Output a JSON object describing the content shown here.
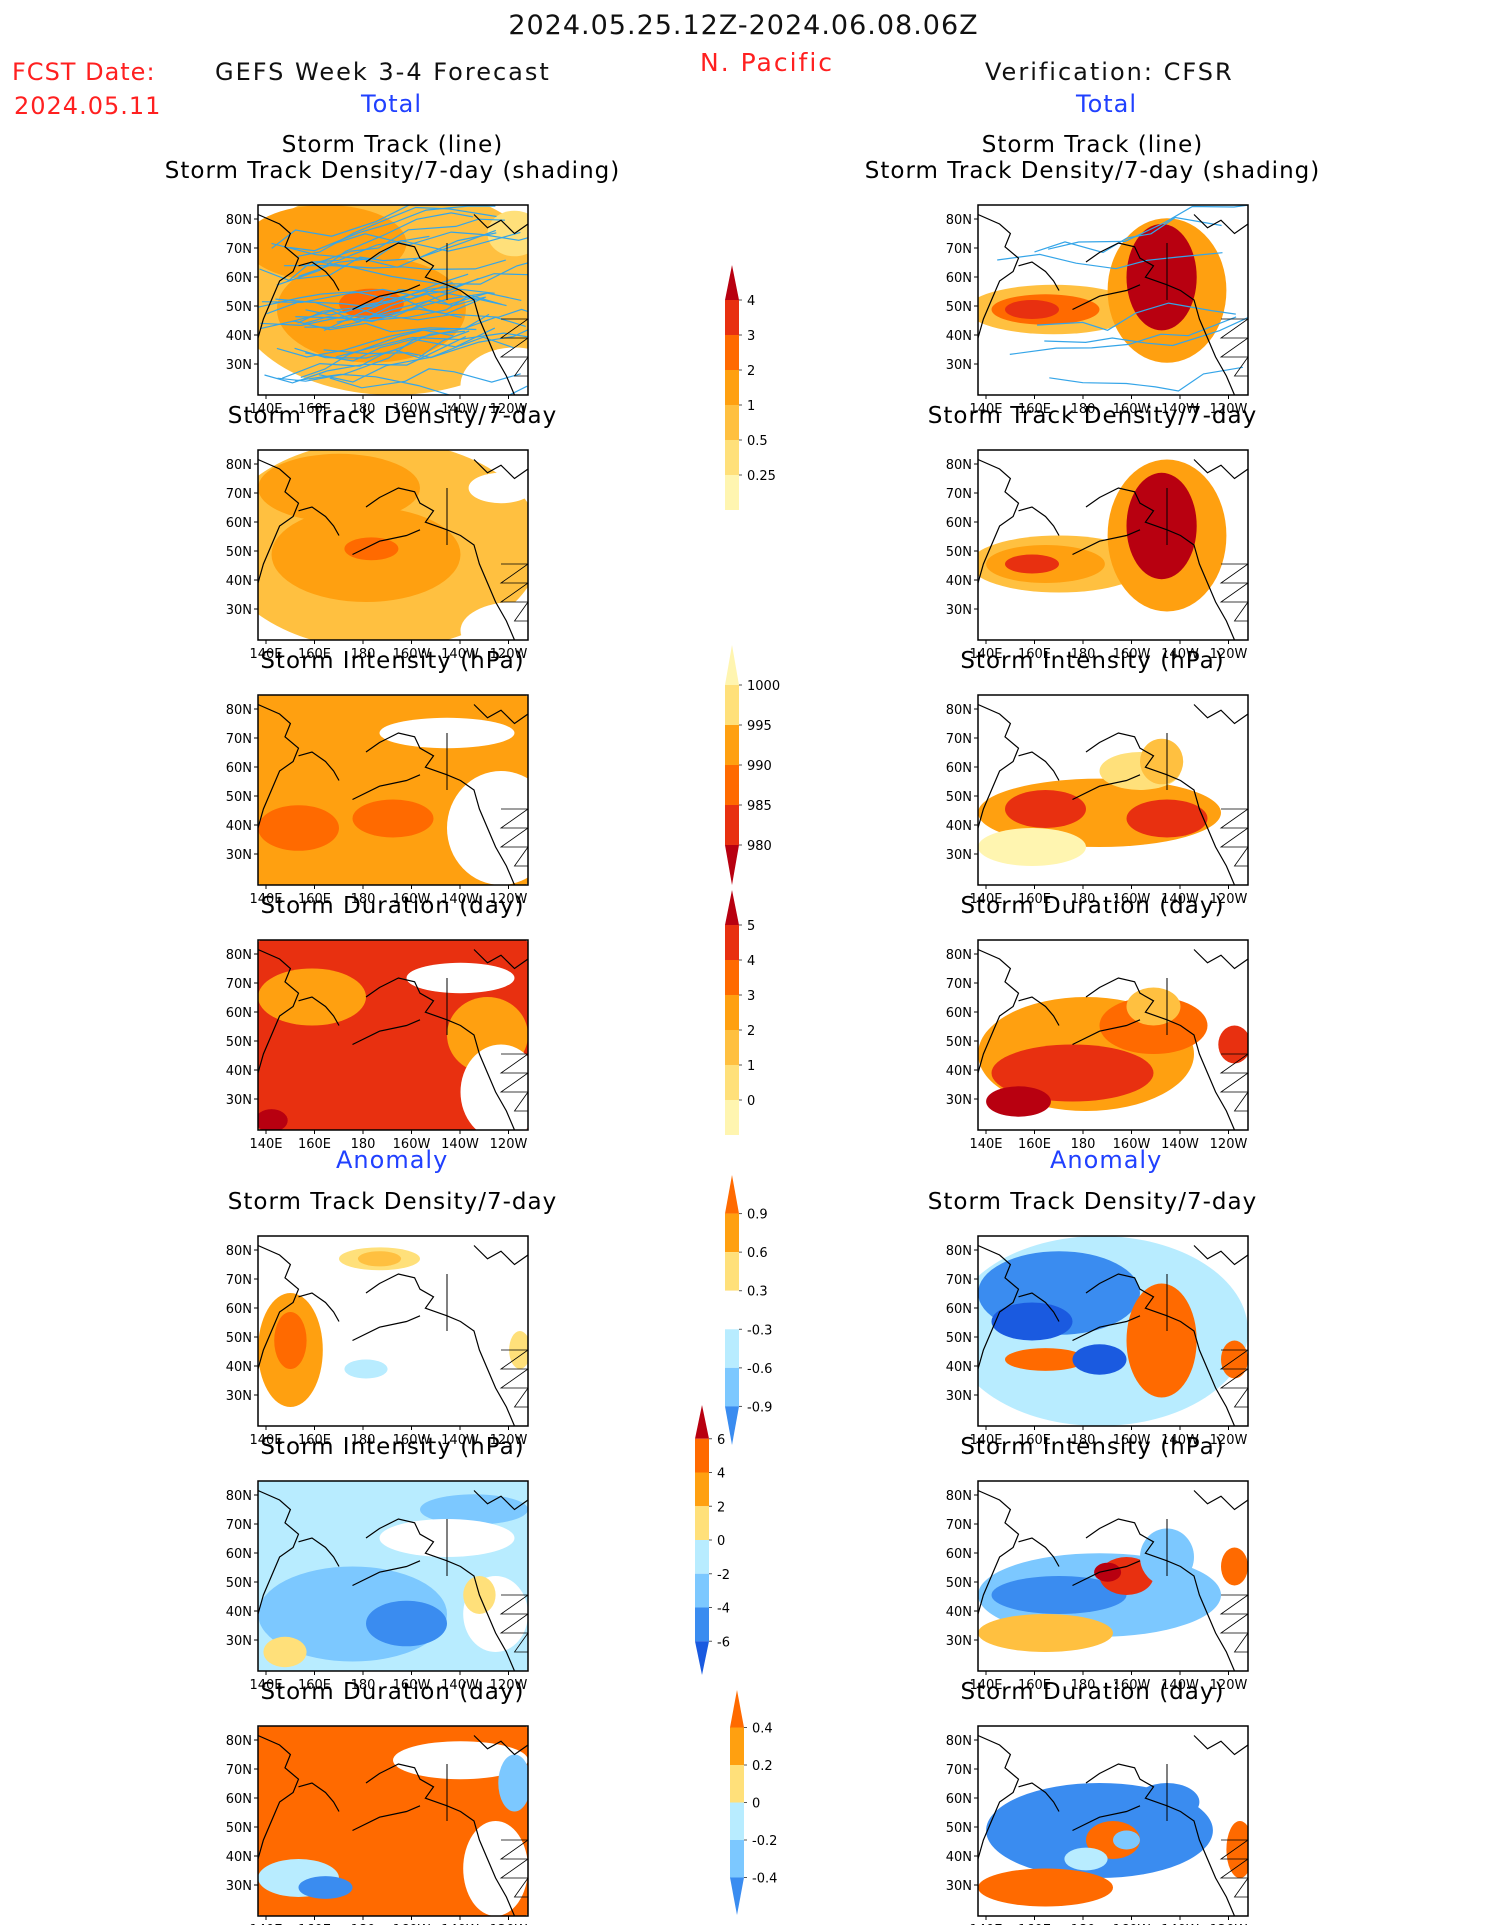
{
  "header": {
    "period": "2024.05.25.12Z-2024.06.08.06Z",
    "region": "N. Pacific",
    "fcst_label": "FCST Date:",
    "fcst_date": "2024.05.11",
    "forecast_title": "GEFS Week 3-4 Forecast",
    "verification_title": "Verification: CFSR",
    "total_label": "Total",
    "anomaly_label": "Anomaly"
  },
  "map_axes": {
    "lat_ticks": [
      "80N",
      "70N",
      "60N",
      "50N",
      "40N",
      "30N"
    ],
    "lon_ticks": [
      "140E",
      "160E",
      "180",
      "160W",
      "140W",
      "120W"
    ]
  },
  "colors": {
    "title_blue": "#2040ff",
    "title_red": "#ff2020",
    "yellow_pale": "#fff5b0",
    "yellow": "#ffe07a",
    "orange_light": "#ffc040",
    "orange": "#ffa010",
    "orange_dark": "#ff6a00",
    "red": "#e83010",
    "red_dark": "#b80010",
    "blue_pale": "#b8ecff",
    "blue_light": "#7cc8ff",
    "blue": "#3a8cf0",
    "blue_dark": "#1a5ae0",
    "track_line": "#35a5e8"
  },
  "panels": {
    "left": {
      "track": [
        "Storm Track (line)",
        "Storm Track Density/7-day (shading)"
      ],
      "density": "Storm Track Density/7-day",
      "intensity": "Storm Intensity (hPa)",
      "duration": "Storm Duration (day)",
      "anom_density": "Storm Track Density/7-day",
      "anom_intensity": "Storm Intensity (hPa)",
      "anom_duration": "Storm Duration (day)"
    },
    "right": {
      "track": [
        "Storm Track (line)",
        "Storm Track Density/7-day (shading)"
      ],
      "density": "Storm Track Density/7-day",
      "intensity": "Storm Intensity (hPa)",
      "duration": "Storm Duration (day)",
      "anom_density": "Storm Track Density/7-day",
      "anom_intensity": "Storm Intensity (hPa)",
      "anom_duration": "Storm Duration (day)"
    }
  },
  "colorbars": {
    "density": {
      "labels": [
        "4",
        "3",
        "2",
        "1",
        "0.5",
        "0.25"
      ],
      "colors": [
        "#b80010",
        "#e83010",
        "#ff6a00",
        "#ffa010",
        "#ffc040",
        "#ffe07a",
        "#fff5b0"
      ]
    },
    "intensity": {
      "labels": [
        "1000",
        "995",
        "990",
        "985",
        "980"
      ],
      "colors": [
        "#fff5b0",
        "#ffe07a",
        "#ffa010",
        "#ff6a00",
        "#e83010",
        "#b80010"
      ]
    },
    "duration": {
      "labels": [
        "5",
        "4",
        "3",
        "2",
        "1",
        "0"
      ],
      "colors": [
        "#b80010",
        "#e83010",
        "#ff6a00",
        "#ffa010",
        "#ffc040",
        "#ffe07a",
        "#fff5b0"
      ]
    },
    "anom_density": {
      "labels": [
        "0.9",
        "0.6",
        "0.3",
        "-0.3",
        "-0.6",
        "-0.9"
      ],
      "colors": [
        "#ff6a00",
        "#ffa010",
        "#ffe07a",
        "#ffffff",
        "#b8ecff",
        "#7cc8ff",
        "#3a8cf0"
      ]
    },
    "anom_intensity": {
      "labels": [
        "6",
        "4",
        "2",
        "0",
        "-2",
        "-4",
        "-6"
      ],
      "colors": [
        "#b80010",
        "#ff6a00",
        "#ffa010",
        "#ffe07a",
        "#b8ecff",
        "#7cc8ff",
        "#3a8cf0",
        "#1a5ae0"
      ]
    },
    "anom_duration": {
      "labels": [
        "0.4",
        "0.2",
        "0",
        "-0.2",
        "-0.4"
      ],
      "colors": [
        "#ff6a00",
        "#ffa010",
        "#ffe07a",
        "#b8ecff",
        "#7cc8ff",
        "#3a8cf0"
      ]
    }
  },
  "chart_data": [
    {
      "type": "heatmap",
      "title": "Storm Track (line) / Storm Track Density/7-day (shading)",
      "source": "GEFS Week 3-4 Forecast",
      "colorbar_levels": [
        0.25,
        0.5,
        1,
        2,
        3,
        4
      ],
      "overlay": "storm track lines"
    },
    {
      "type": "heatmap",
      "title": "Storm Track (line) / Storm Track Density/7-day (shading)",
      "source": "Verification: CFSR",
      "colorbar_levels": [
        0.25,
        0.5,
        1,
        2,
        3,
        4
      ],
      "overlay": "storm track lines"
    },
    {
      "type": "heatmap",
      "title": "Storm Track Density/7-day",
      "source": "GEFS Week 3-4 Forecast",
      "colorbar_levels": [
        0.25,
        0.5,
        1,
        2,
        3,
        4
      ]
    },
    {
      "type": "heatmap",
      "title": "Storm Track Density/7-day",
      "source": "Verification: CFSR",
      "colorbar_levels": [
        0.25,
        0.5,
        1,
        2,
        3,
        4
      ]
    },
    {
      "type": "heatmap",
      "title": "Storm Intensity (hPa)",
      "source": "GEFS Week 3-4 Forecast",
      "colorbar_levels": [
        980,
        985,
        990,
        995,
        1000
      ]
    },
    {
      "type": "heatmap",
      "title": "Storm Intensity (hPa)",
      "source": "Verification: CFSR",
      "colorbar_levels": [
        980,
        985,
        990,
        995,
        1000
      ]
    },
    {
      "type": "heatmap",
      "title": "Storm Duration (day)",
      "source": "GEFS Week 3-4 Forecast",
      "colorbar_levels": [
        0,
        1,
        2,
        3,
        4,
        5
      ]
    },
    {
      "type": "heatmap",
      "title": "Storm Duration (day)",
      "source": "Verification: CFSR",
      "colorbar_levels": [
        0,
        1,
        2,
        3,
        4,
        5
      ]
    },
    {
      "type": "heatmap",
      "title": "Anomaly: Storm Track Density/7-day",
      "source": "GEFS Week 3-4 Forecast",
      "colorbar_levels": [
        -0.9,
        -0.6,
        -0.3,
        0.3,
        0.6,
        0.9
      ]
    },
    {
      "type": "heatmap",
      "title": "Anomaly: Storm Track Density/7-day",
      "source": "Verification: CFSR",
      "colorbar_levels": [
        -0.9,
        -0.6,
        -0.3,
        0.3,
        0.6,
        0.9
      ]
    },
    {
      "type": "heatmap",
      "title": "Anomaly: Storm Intensity (hPa)",
      "source": "GEFS Week 3-4 Forecast",
      "colorbar_levels": [
        -6,
        -4,
        -2,
        0,
        2,
        4,
        6
      ]
    },
    {
      "type": "heatmap",
      "title": "Anomaly: Storm Intensity (hPa)",
      "source": "Verification: CFSR",
      "colorbar_levels": [
        -6,
        -4,
        -2,
        0,
        2,
        4,
        6
      ]
    },
    {
      "type": "heatmap",
      "title": "Anomaly: Storm Duration (day)",
      "source": "GEFS Week 3-4 Forecast",
      "colorbar_levels": [
        -0.4,
        -0.2,
        0,
        0.2,
        0.4
      ]
    },
    {
      "type": "heatmap",
      "title": "Anomaly: Storm Duration (day)",
      "source": "Verification: CFSR",
      "colorbar_levels": [
        -0.4,
        -0.2,
        0,
        0.2,
        0.4
      ]
    }
  ]
}
